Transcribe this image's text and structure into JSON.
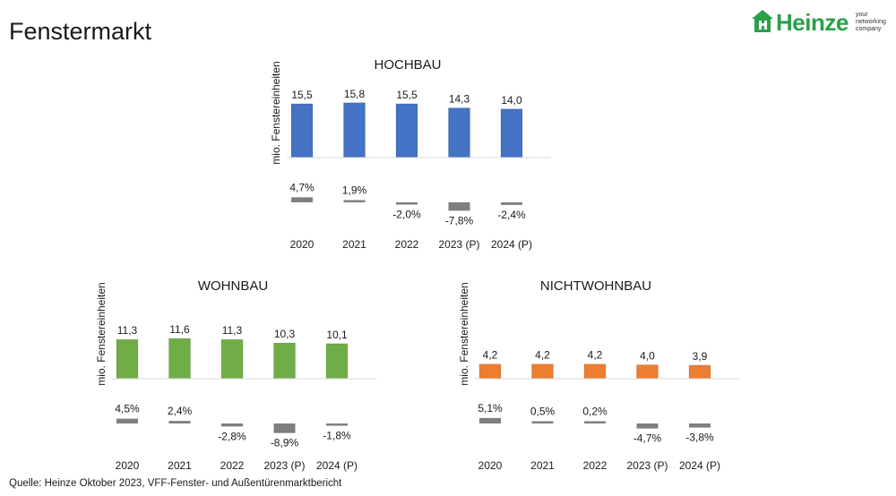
{
  "header": {
    "title": "Fenstermarkt"
  },
  "logo": {
    "name": "Heinze",
    "tagline": [
      "your",
      "networking",
      "company"
    ]
  },
  "source": "Quelle: Heinze Oktober 2023, VFF-Fenster- und Außentürenmarktbericht",
  "colors": {
    "hochbau": "#4472C4",
    "wohnbau": "#70AD47",
    "nichtwohnbau": "#ED7D31",
    "change": "#7F7F7F",
    "logo": "#2AA04A"
  },
  "chart_data": [
    {
      "type": "bar",
      "id": "hochbau",
      "title": "HOCHBAU",
      "ylabel": "mio. Fenstereinheiten",
      "categories": [
        "2020",
        "2021",
        "2022",
        "2023 (P)",
        "2024 (P)"
      ],
      "values": [
        15.5,
        15.8,
        15.5,
        14.3,
        14.0
      ],
      "value_labels": [
        "15,5",
        "15,8",
        "15,5",
        "14,3",
        "14,0"
      ],
      "change_pct": [
        4.7,
        1.9,
        -2.0,
        -7.8,
        -2.4
      ],
      "change_labels": [
        "4,7%",
        "1,9%",
        "-2,0%",
        "-7,8%",
        "-2,4%"
      ],
      "ylim": [
        0,
        16
      ],
      "color": "#4472C4"
    },
    {
      "type": "bar",
      "id": "wohnbau",
      "title": "WOHNBAU",
      "ylabel": "mio. Fenstereinheiten",
      "categories": [
        "2020",
        "2021",
        "2022",
        "2023 (P)",
        "2024 (P)"
      ],
      "values": [
        11.3,
        11.6,
        11.3,
        10.3,
        10.1
      ],
      "value_labels": [
        "11,3",
        "11,6",
        "11,3",
        "10,3",
        "10,1"
      ],
      "change_pct": [
        4.5,
        2.4,
        -2.8,
        -8.9,
        -1.8
      ],
      "change_labels": [
        "4,5%",
        "2,4%",
        "-2,8%",
        "-8,9%",
        "-1,8%"
      ],
      "ylim": [
        0,
        16
      ],
      "color": "#70AD47"
    },
    {
      "type": "bar",
      "id": "nichtwohnbau",
      "title": "NICHTWOHNBAU",
      "ylabel": "mio. Fenstereinheiten",
      "categories": [
        "2020",
        "2021",
        "2022",
        "2023 (P)",
        "2024 (P)"
      ],
      "values": [
        4.2,
        4.2,
        4.2,
        4.0,
        3.9
      ],
      "value_labels": [
        "4,2",
        "4,2",
        "4,2",
        "4,0",
        "3,9"
      ],
      "change_pct": [
        5.1,
        0.5,
        0.2,
        -4.7,
        -3.8
      ],
      "change_labels": [
        "5,1%",
        "0,5%",
        "0,2%",
        "-4,7%",
        "-3,8%"
      ],
      "ylim": [
        0,
        16
      ],
      "color": "#ED7D31"
    }
  ]
}
